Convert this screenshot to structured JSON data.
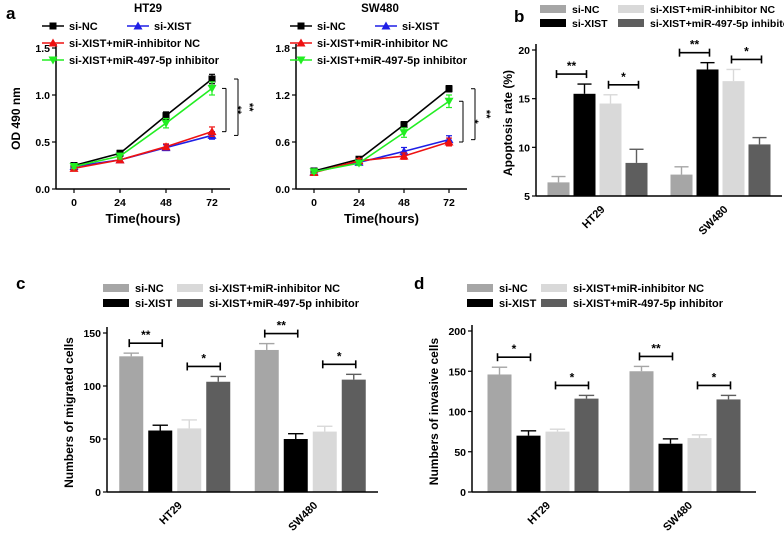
{
  "panel_labels": {
    "a": "a",
    "b": "b",
    "c": "c",
    "d": "d"
  },
  "colors": {
    "black": "#000000",
    "blue": "#1f1fe6",
    "red": "#ee1111",
    "green": "#22ee22",
    "bar_nc": "#a6a6a6",
    "bar_xist": "#000000",
    "bar_inhnc": "#d9d9d9",
    "bar_497": "#5e5e5e"
  },
  "chart_data": [
    {
      "id": "a1",
      "type": "line",
      "title": "HT29",
      "xlabel": "Time(hours)",
      "ylabel": "OD 490 nm",
      "x": [
        0,
        24,
        48,
        72
      ],
      "xticks": [
        "0",
        "24",
        "48",
        "72"
      ],
      "yticks": [
        "0.0",
        "0.5",
        "1.0",
        "1.5"
      ],
      "ylim": [
        0,
        1.5
      ],
      "legend": [
        "si-NC",
        "si-XIST",
        "si-XIST+miR-inhibitor NC",
        "si-XIST+miR-497-5p inhibitor"
      ],
      "series": [
        {
          "name": "si-NC",
          "color": "black",
          "marker": "square",
          "values": [
            0.25,
            0.38,
            0.78,
            1.17
          ],
          "errors": [
            0.02,
            0.03,
            0.04,
            0.05
          ]
        },
        {
          "name": "si-XIST",
          "color": "blue",
          "marker": "triangle",
          "values": [
            0.24,
            0.31,
            0.44,
            0.57
          ],
          "errors": [
            0.02,
            0.02,
            0.03,
            0.04
          ]
        },
        {
          "name": "si-XIST+miR-inhibitor NC",
          "color": "red",
          "marker": "triangle",
          "values": [
            0.22,
            0.31,
            0.45,
            0.61
          ],
          "errors": [
            0.02,
            0.02,
            0.03,
            0.05
          ]
        },
        {
          "name": "si-XIST+miR-497-5p inhibitor",
          "color": "green",
          "marker": "down-triangle",
          "values": [
            0.24,
            0.35,
            0.7,
            1.07
          ],
          "errors": [
            0.02,
            0.03,
            0.05,
            0.07
          ]
        }
      ],
      "significance": [
        {
          "label": "**",
          "between": [
            "si-NC",
            "si-XIST"
          ]
        },
        {
          "label": "**",
          "between": [
            "si-XIST+miR-inhibitor NC",
            "si-XIST+miR-497-5p inhibitor"
          ]
        }
      ]
    },
    {
      "id": "a2",
      "type": "line",
      "title": "SW480",
      "xlabel": "Time(hours)",
      "ylabel": "",
      "x": [
        0,
        24,
        48,
        72
      ],
      "xticks": [
        "0",
        "24",
        "48",
        "72"
      ],
      "yticks": [
        "0.0",
        "0.6",
        "1.2",
        "1.8"
      ],
      "ylim": [
        0,
        1.8
      ],
      "legend": [
        "si-NC",
        "si-XIST",
        "si-XIST+miR-inhibitor NC",
        "si-XIST+miR-497-5p inhibitor"
      ],
      "series": [
        {
          "name": "si-NC",
          "color": "black",
          "marker": "square",
          "values": [
            0.23,
            0.38,
            0.82,
            1.28
          ],
          "errors": [
            0.02,
            0.03,
            0.04,
            0.04
          ]
        },
        {
          "name": "si-XIST",
          "color": "blue",
          "marker": "triangle",
          "values": [
            0.22,
            0.34,
            0.48,
            0.63
          ],
          "errors": [
            0.02,
            0.03,
            0.05,
            0.05
          ]
        },
        {
          "name": "si-XIST+miR-inhibitor NC",
          "color": "red",
          "marker": "triangle",
          "values": [
            0.21,
            0.36,
            0.42,
            0.6
          ],
          "errors": [
            0.02,
            0.03,
            0.04,
            0.05
          ]
        },
        {
          "name": "si-XIST+miR-497-5p inhibitor",
          "color": "green",
          "marker": "down-triangle",
          "values": [
            0.22,
            0.33,
            0.72,
            1.12
          ],
          "errors": [
            0.02,
            0.03,
            0.06,
            0.08
          ]
        }
      ],
      "significance": [
        {
          "label": "**",
          "between": [
            "si-NC",
            "si-XIST"
          ]
        },
        {
          "label": "*",
          "between": [
            "si-XIST+miR-inhibitor NC",
            "si-XIST+miR-497-5p inhibitor"
          ]
        }
      ]
    },
    {
      "id": "b",
      "type": "bar",
      "title": "",
      "xlabel": "",
      "ylabel": "Apoptosis rate (%)",
      "categories": [
        "HT29",
        "SW480"
      ],
      "yticks": [
        "5",
        "10",
        "15",
        "20"
      ],
      "ylim": [
        5,
        20
      ],
      "legend": [
        "si-NC",
        "si-XIST",
        "si-XIST+miR-inhibitor NC",
        "si-XIST+miR-497-5p inhibitor"
      ],
      "series": [
        {
          "name": "si-NC",
          "color": "bar_nc",
          "values": [
            6.4,
            7.2
          ],
          "errors": [
            0.6,
            0.8
          ]
        },
        {
          "name": "si-XIST",
          "color": "bar_xist",
          "values": [
            15.5,
            18.0
          ],
          "errors": [
            1.0,
            0.7
          ]
        },
        {
          "name": "si-XIST+miR-inhibitor NC",
          "color": "bar_inhnc",
          "values": [
            14.5,
            16.8
          ],
          "errors": [
            0.9,
            1.2
          ]
        },
        {
          "name": "si-XIST+miR-497-5p inhibitor",
          "color": "bar_497",
          "values": [
            8.4,
            10.3
          ],
          "errors": [
            1.4,
            0.7
          ]
        }
      ],
      "significance": [
        {
          "group": 0,
          "bars": [
            0,
            1
          ],
          "label": "**"
        },
        {
          "group": 0,
          "bars": [
            2,
            3
          ],
          "label": "*"
        },
        {
          "group": 1,
          "bars": [
            0,
            1
          ],
          "label": "**"
        },
        {
          "group": 1,
          "bars": [
            2,
            3
          ],
          "label": "*"
        }
      ]
    },
    {
      "id": "c",
      "type": "bar",
      "title": "",
      "xlabel": "",
      "ylabel": "Numbers of migrated cells",
      "categories": [
        "HT29",
        "SW480"
      ],
      "yticks": [
        "0",
        "50",
        "100",
        "150"
      ],
      "ylim": [
        0,
        150
      ],
      "legend": [
        "si-NC",
        "si-XIST",
        "si-XIST+miR-inhibitor NC",
        "si-XIST+miR-497-5p inhibitor"
      ],
      "series": [
        {
          "name": "si-NC",
          "color": "bar_nc",
          "values": [
            128,
            134
          ],
          "errors": [
            3,
            6
          ]
        },
        {
          "name": "si-XIST",
          "color": "bar_xist",
          "values": [
            58,
            50
          ],
          "errors": [
            5,
            5
          ]
        },
        {
          "name": "si-XIST+miR-inhibitor NC",
          "color": "bar_inhnc",
          "values": [
            60,
            57
          ],
          "errors": [
            8,
            5
          ]
        },
        {
          "name": "si-XIST+miR-497-5p inhibitor",
          "color": "bar_497",
          "values": [
            104,
            106
          ],
          "errors": [
            5,
            5
          ]
        }
      ],
      "significance": [
        {
          "group": 0,
          "bars": [
            0,
            1
          ],
          "label": "**"
        },
        {
          "group": 0,
          "bars": [
            2,
            3
          ],
          "label": "*"
        },
        {
          "group": 1,
          "bars": [
            0,
            1
          ],
          "label": "**"
        },
        {
          "group": 1,
          "bars": [
            2,
            3
          ],
          "label": "*"
        }
      ]
    },
    {
      "id": "d",
      "type": "bar",
      "title": "",
      "xlabel": "",
      "ylabel": "Numbers of invasive cells",
      "categories": [
        "HT29",
        "SW480"
      ],
      "yticks": [
        "0",
        "50",
        "100",
        "150",
        "200"
      ],
      "ylim": [
        0,
        200
      ],
      "legend": [
        "si-NC",
        "si-XIST",
        "si-XIST+miR-inhibitor NC",
        "si-XIST+miR-497-5p inhibitor"
      ],
      "series": [
        {
          "name": "si-NC",
          "color": "bar_nc",
          "values": [
            146,
            150
          ],
          "errors": [
            9,
            6
          ]
        },
        {
          "name": "si-XIST",
          "color": "bar_xist",
          "values": [
            70,
            60
          ],
          "errors": [
            6,
            6
          ]
        },
        {
          "name": "si-XIST+miR-inhibitor NC",
          "color": "bar_inhnc",
          "values": [
            75,
            67
          ],
          "errors": [
            3,
            4
          ]
        },
        {
          "name": "si-XIST+miR-497-5p inhibitor",
          "color": "bar_497",
          "values": [
            116,
            115
          ],
          "errors": [
            4,
            5
          ]
        }
      ],
      "significance": [
        {
          "group": 0,
          "bars": [
            0,
            1
          ],
          "label": "*"
        },
        {
          "group": 0,
          "bars": [
            2,
            3
          ],
          "label": "*"
        },
        {
          "group": 1,
          "bars": [
            0,
            1
          ],
          "label": "**"
        },
        {
          "group": 1,
          "bars": [
            2,
            3
          ],
          "label": "*"
        }
      ]
    }
  ]
}
